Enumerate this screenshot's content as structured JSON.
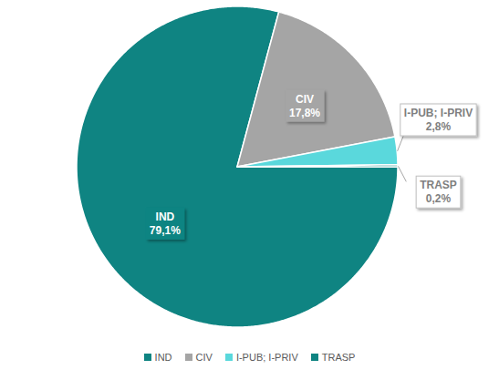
{
  "chart_data": {
    "type": "pie",
    "categories": [
      "IND",
      "CIV",
      "I-PUB; I-PRIV",
      "TRASP"
    ],
    "values": [
      79.1,
      17.8,
      2.8,
      0.2
    ],
    "value_labels": [
      "79,1%",
      "17,8%",
      "2,8%",
      "0,2%"
    ],
    "colors": [
      "#0f8482",
      "#a5a5a5",
      "#5ad8dc",
      "#0f8482"
    ],
    "data_labels": true,
    "legend": "bottom"
  }
}
